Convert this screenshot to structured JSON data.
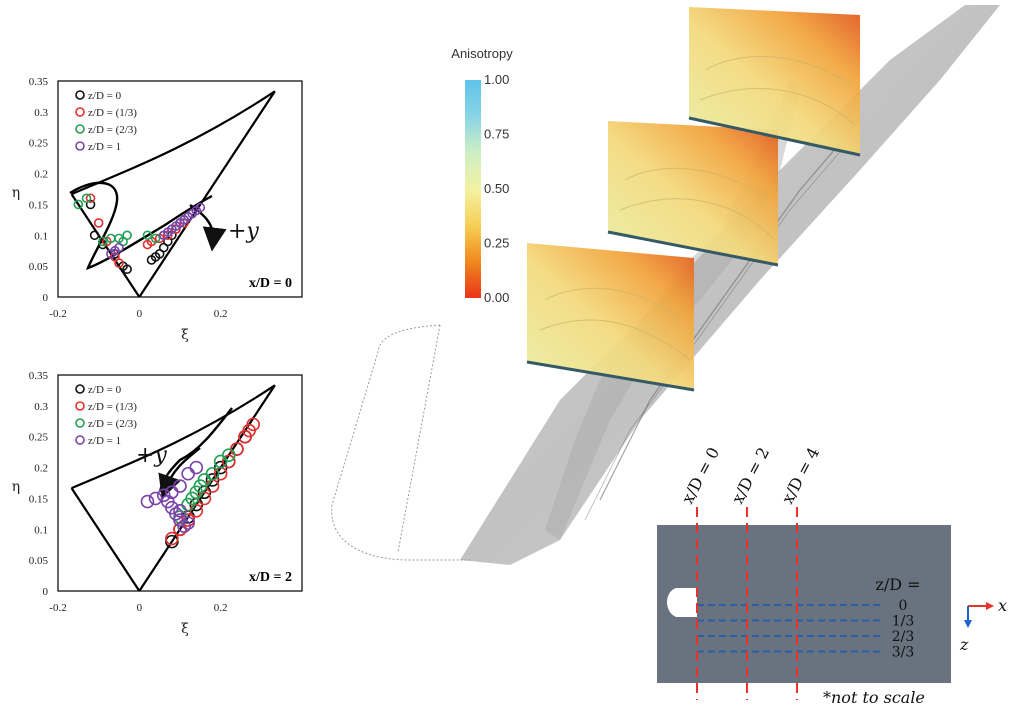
{
  "chart_data": [
    {
      "type": "scatter",
      "panel_label": "x/D = 0",
      "xlabel": "ξ",
      "ylabel": "η",
      "xlim": [
        -0.2,
        0.4
      ],
      "ylim": [
        0,
        0.35
      ],
      "x_ticks": [
        "-0.2",
        "0",
        "0.2"
      ],
      "y_ticks": [
        "0",
        "0.05",
        "0.1",
        "0.15",
        "0.2",
        "0.25",
        "0.3",
        "0.35"
      ],
      "legend": "top-left",
      "annotation": "+y",
      "series": [
        {
          "name": "z/D = 0",
          "color": "#111111",
          "points": [
            [
              -0.12,
              0.15
            ],
            [
              -0.11,
              0.1
            ],
            [
              -0.09,
              0.085
            ],
            [
              -0.06,
              0.07
            ],
            [
              -0.04,
              0.05
            ],
            [
              -0.03,
              0.045
            ],
            [
              0.03,
              0.06
            ],
            [
              0.04,
              0.065
            ],
            [
              0.05,
              0.07
            ],
            [
              0.06,
              0.08
            ],
            [
              0.07,
              0.09
            ],
            [
              0.08,
              0.1
            ],
            [
              0.09,
              0.11
            ],
            [
              0.1,
              0.12
            ],
            [
              0.11,
              0.125
            ]
          ]
        },
        {
          "name": "z/D = (1/3)",
          "color": "#e03030",
          "points": [
            [
              -0.12,
              0.16
            ],
            [
              -0.1,
              0.12
            ],
            [
              -0.08,
              0.09
            ],
            [
              -0.06,
              0.065
            ],
            [
              -0.05,
              0.055
            ],
            [
              0.02,
              0.085
            ],
            [
              0.03,
              0.09
            ],
            [
              0.05,
              0.095
            ],
            [
              0.07,
              0.1
            ],
            [
              0.09,
              0.11
            ],
            [
              0.11,
              0.12
            ]
          ]
        },
        {
          "name": "z/D = (2/3)",
          "color": "#22a055",
          "points": [
            [
              -0.15,
              0.15
            ],
            [
              -0.13,
              0.16
            ],
            [
              -0.09,
              0.09
            ],
            [
              -0.07,
              0.095
            ],
            [
              -0.05,
              0.095
            ],
            [
              -0.03,
              0.1
            ],
            [
              -0.04,
              0.09
            ],
            [
              0.02,
              0.1
            ],
            [
              0.04,
              0.095
            ],
            [
              0.06,
              0.1
            ],
            [
              0.08,
              0.11
            ],
            [
              0.1,
              0.12
            ],
            [
              0.12,
              0.13
            ]
          ]
        },
        {
          "name": "z/D = 1",
          "color": "#7b44aa",
          "points": [
            [
              -0.07,
              0.07
            ],
            [
              -0.06,
              0.075
            ],
            [
              -0.05,
              0.08
            ],
            [
              0.06,
              0.1
            ],
            [
              0.07,
              0.105
            ],
            [
              0.08,
              0.11
            ],
            [
              0.09,
              0.115
            ],
            [
              0.1,
              0.12
            ],
            [
              0.11,
              0.125
            ],
            [
              0.12,
              0.13
            ],
            [
              0.13,
              0.135
            ],
            [
              0.14,
              0.14
            ],
            [
              0.15,
              0.145
            ]
          ]
        }
      ]
    },
    {
      "type": "scatter",
      "panel_label": "x/D = 2",
      "xlabel": "ξ",
      "ylabel": "η",
      "xlim": [
        -0.2,
        0.4
      ],
      "ylim": [
        0,
        0.35
      ],
      "x_ticks": [
        "-0.2",
        "0",
        "0.2"
      ],
      "y_ticks": [
        "0",
        "0.05",
        "0.1",
        "0.15",
        "0.2",
        "0.25",
        "0.3",
        "0.35"
      ],
      "legend": "top-left",
      "annotation": "+y",
      "series": [
        {
          "name": "z/D = 0",
          "color": "#111111",
          "points": [
            [
              0.08,
              0.08
            ],
            [
              0.1,
              0.1
            ],
            [
              0.12,
              0.12
            ],
            [
              0.14,
              0.14
            ],
            [
              0.16,
              0.16
            ],
            [
              0.18,
              0.18
            ],
            [
              0.2,
              0.2
            ],
            [
              0.22,
              0.21
            ],
            [
              0.24,
              0.23
            ],
            [
              0.26,
              0.25
            ]
          ]
        },
        {
          "name": "z/D = (1/3)",
          "color": "#e03030",
          "points": [
            [
              0.08,
              0.085
            ],
            [
              0.1,
              0.1
            ],
            [
              0.12,
              0.115
            ],
            [
              0.14,
              0.13
            ],
            [
              0.16,
              0.15
            ],
            [
              0.18,
              0.17
            ],
            [
              0.2,
              0.19
            ],
            [
              0.22,
              0.21
            ],
            [
              0.24,
              0.23
            ],
            [
              0.26,
              0.25
            ],
            [
              0.27,
              0.26
            ],
            [
              0.28,
              0.27
            ]
          ]
        },
        {
          "name": "z/D = (2/3)",
          "color": "#22a055",
          "points": [
            [
              0.1,
              0.12
            ],
            [
              0.12,
              0.14
            ],
            [
              0.13,
              0.15
            ],
            [
              0.14,
              0.16
            ],
            [
              0.15,
              0.17
            ],
            [
              0.16,
              0.18
            ],
            [
              0.18,
              0.19
            ],
            [
              0.2,
              0.21
            ],
            [
              0.22,
              0.22
            ]
          ]
        },
        {
          "name": "z/D = 1",
          "color": "#7b44aa",
          "points": [
            [
              0.02,
              0.145
            ],
            [
              0.04,
              0.15
            ],
            [
              0.06,
              0.155
            ],
            [
              0.07,
              0.145
            ],
            [
              0.08,
              0.135
            ],
            [
              0.09,
              0.125
            ],
            [
              0.1,
              0.115
            ],
            [
              0.11,
              0.105
            ],
            [
              0.12,
              0.11
            ],
            [
              0.1,
              0.13
            ],
            [
              0.08,
              0.16
            ],
            [
              0.1,
              0.17
            ],
            [
              0.12,
              0.19
            ],
            [
              0.14,
              0.2
            ]
          ]
        }
      ]
    }
  ],
  "colorbar": {
    "title": "Anisotropy",
    "ticks": [
      "1.00",
      "0.75",
      "0.50",
      "0.25",
      "0.00"
    ],
    "colors": [
      "#e8351a",
      "#f08a1e",
      "#f5cf55",
      "#f3f2a2",
      "#cdeec5",
      "#88d3e6",
      "#5ec4ea"
    ]
  },
  "schematic": {
    "stations": [
      "x/D = 0",
      "x/D = 2",
      "x/D = 4"
    ],
    "zd_title": "z/D =",
    "zd_levels": [
      "0",
      "1/3",
      "2/3",
      "3/3"
    ],
    "axis_x": "x",
    "axis_z": "z",
    "note": "*not to scale",
    "plate_color": "#68737f",
    "station_color": "#e8322a",
    "level_color": "#2a5fa8"
  }
}
